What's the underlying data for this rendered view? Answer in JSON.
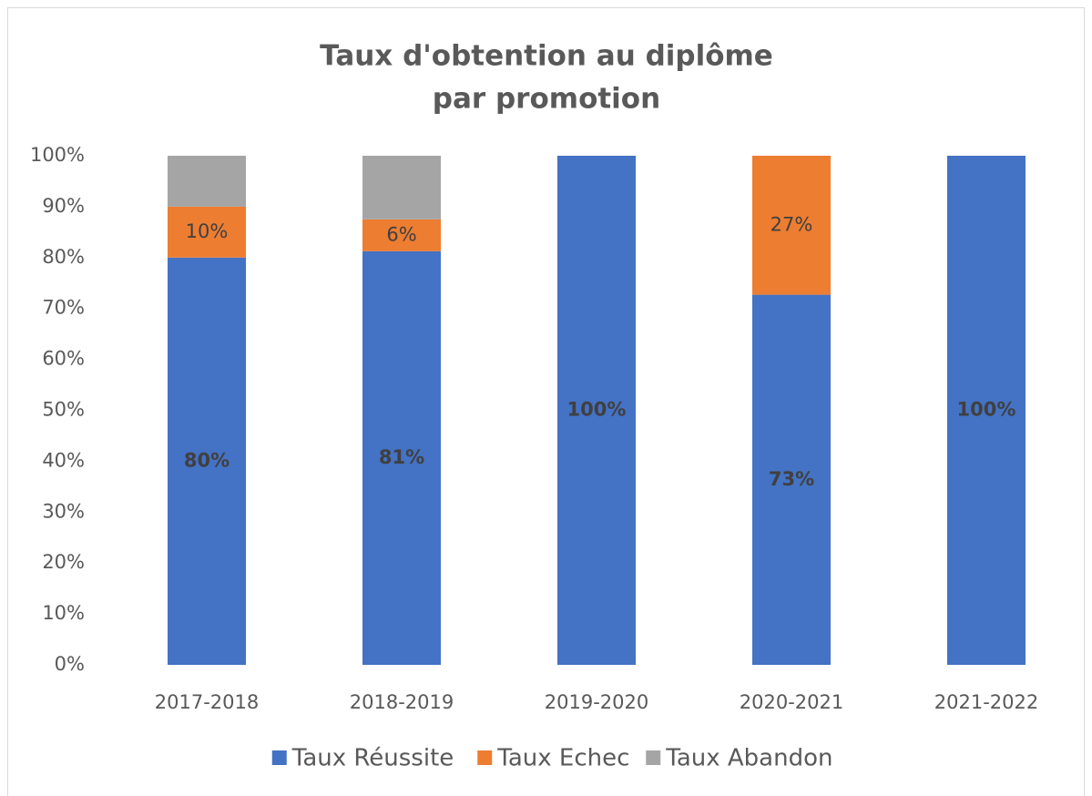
{
  "chart_data": {
    "type": "stacked_bar",
    "title": [
      "Taux d'obtention au diplôme",
      "par promotion"
    ],
    "categories": [
      "2017-2018",
      "2018-2019",
      "2019-2020",
      "2020-2021",
      "2021-2022"
    ],
    "series": [
      {
        "name": "Taux Réussite",
        "color": "#4472c4",
        "values": [
          80,
          81.25,
          100,
          72.7,
          100
        ],
        "value_labels": [
          "80%",
          "81%",
          "100%",
          "73%",
          "100%"
        ]
      },
      {
        "name": "Taux Echec",
        "color": "#ed7d31",
        "values": [
          10,
          6.25,
          0,
          27.3,
          0
        ],
        "value_labels": [
          "10%",
          "6%",
          null,
          "27%",
          null
        ]
      },
      {
        "name": "Taux Abandon",
        "color": "#a5a5a5",
        "values": [
          10,
          12.5,
          0,
          0,
          0
        ]
      }
    ],
    "ylim": [
      0,
      100
    ],
    "yticks": [
      {
        "value": 0,
        "label": "0%"
      },
      {
        "value": 10,
        "label": "10%"
      },
      {
        "value": 20,
        "label": "20%"
      },
      {
        "value": 30,
        "label": "30%"
      },
      {
        "value": 40,
        "label": "40%"
      },
      {
        "value": 50,
        "label": "50%"
      },
      {
        "value": 60,
        "label": "60%"
      },
      {
        "value": 70,
        "label": "70%"
      },
      {
        "value": 80,
        "label": "80%"
      },
      {
        "value": 90,
        "label": "90%"
      },
      {
        "value": 100,
        "label": "100%"
      }
    ],
    "grid": false,
    "legend": "bottom"
  }
}
